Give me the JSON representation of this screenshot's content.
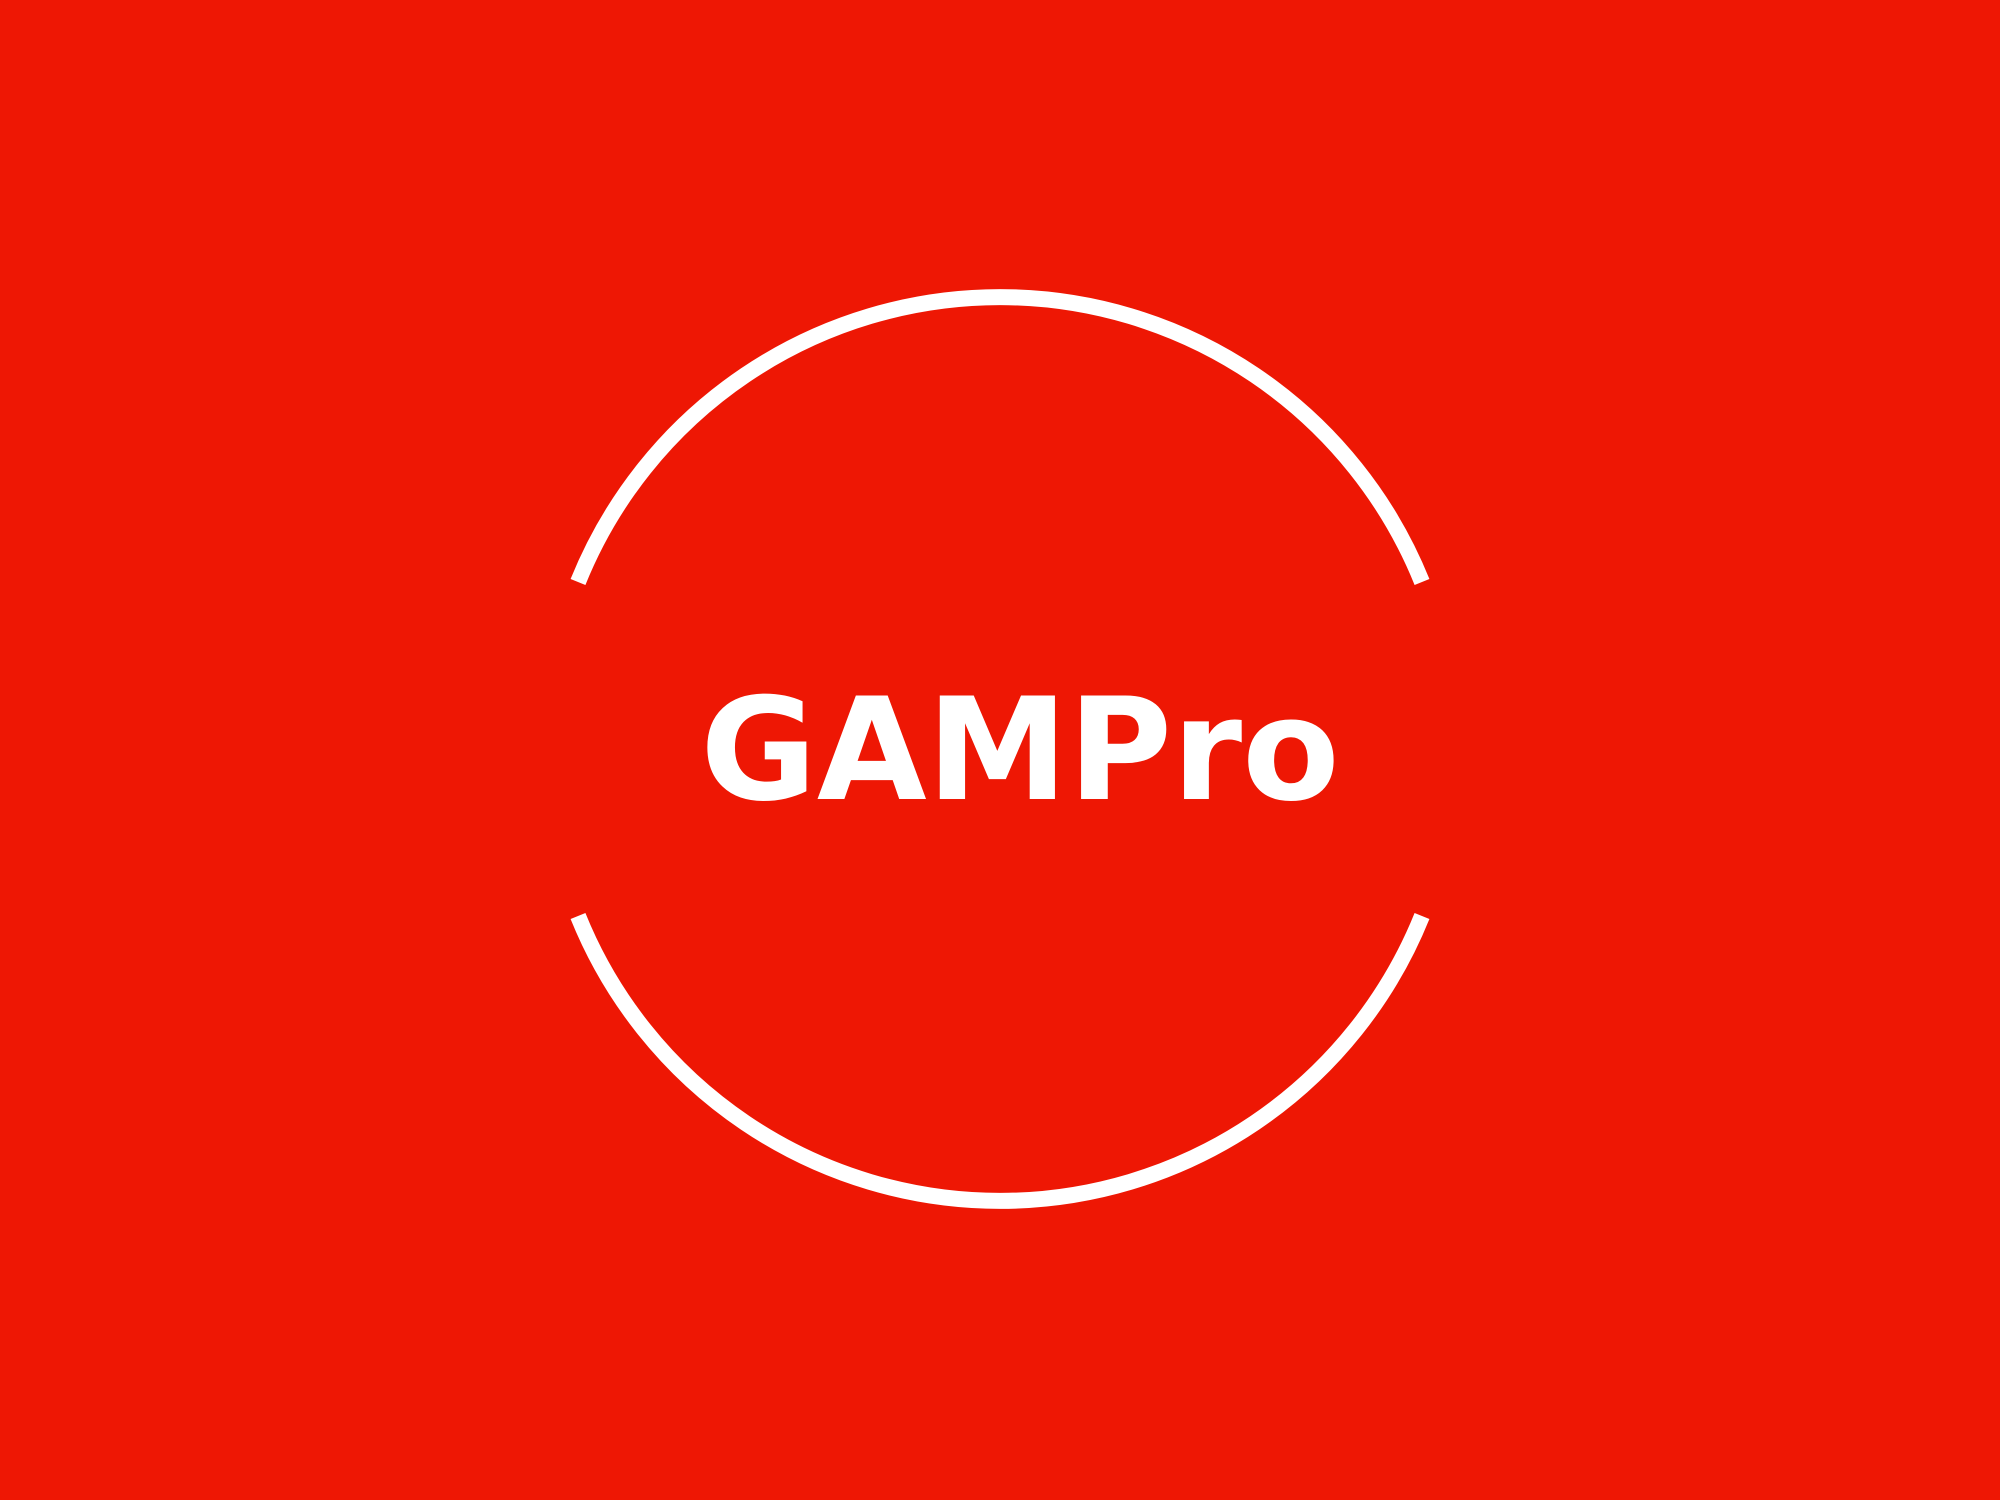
{
  "logo": {
    "text": "GAMPro",
    "colors": {
      "background": "#ee1704",
      "foreground": "#ffffff"
    }
  }
}
